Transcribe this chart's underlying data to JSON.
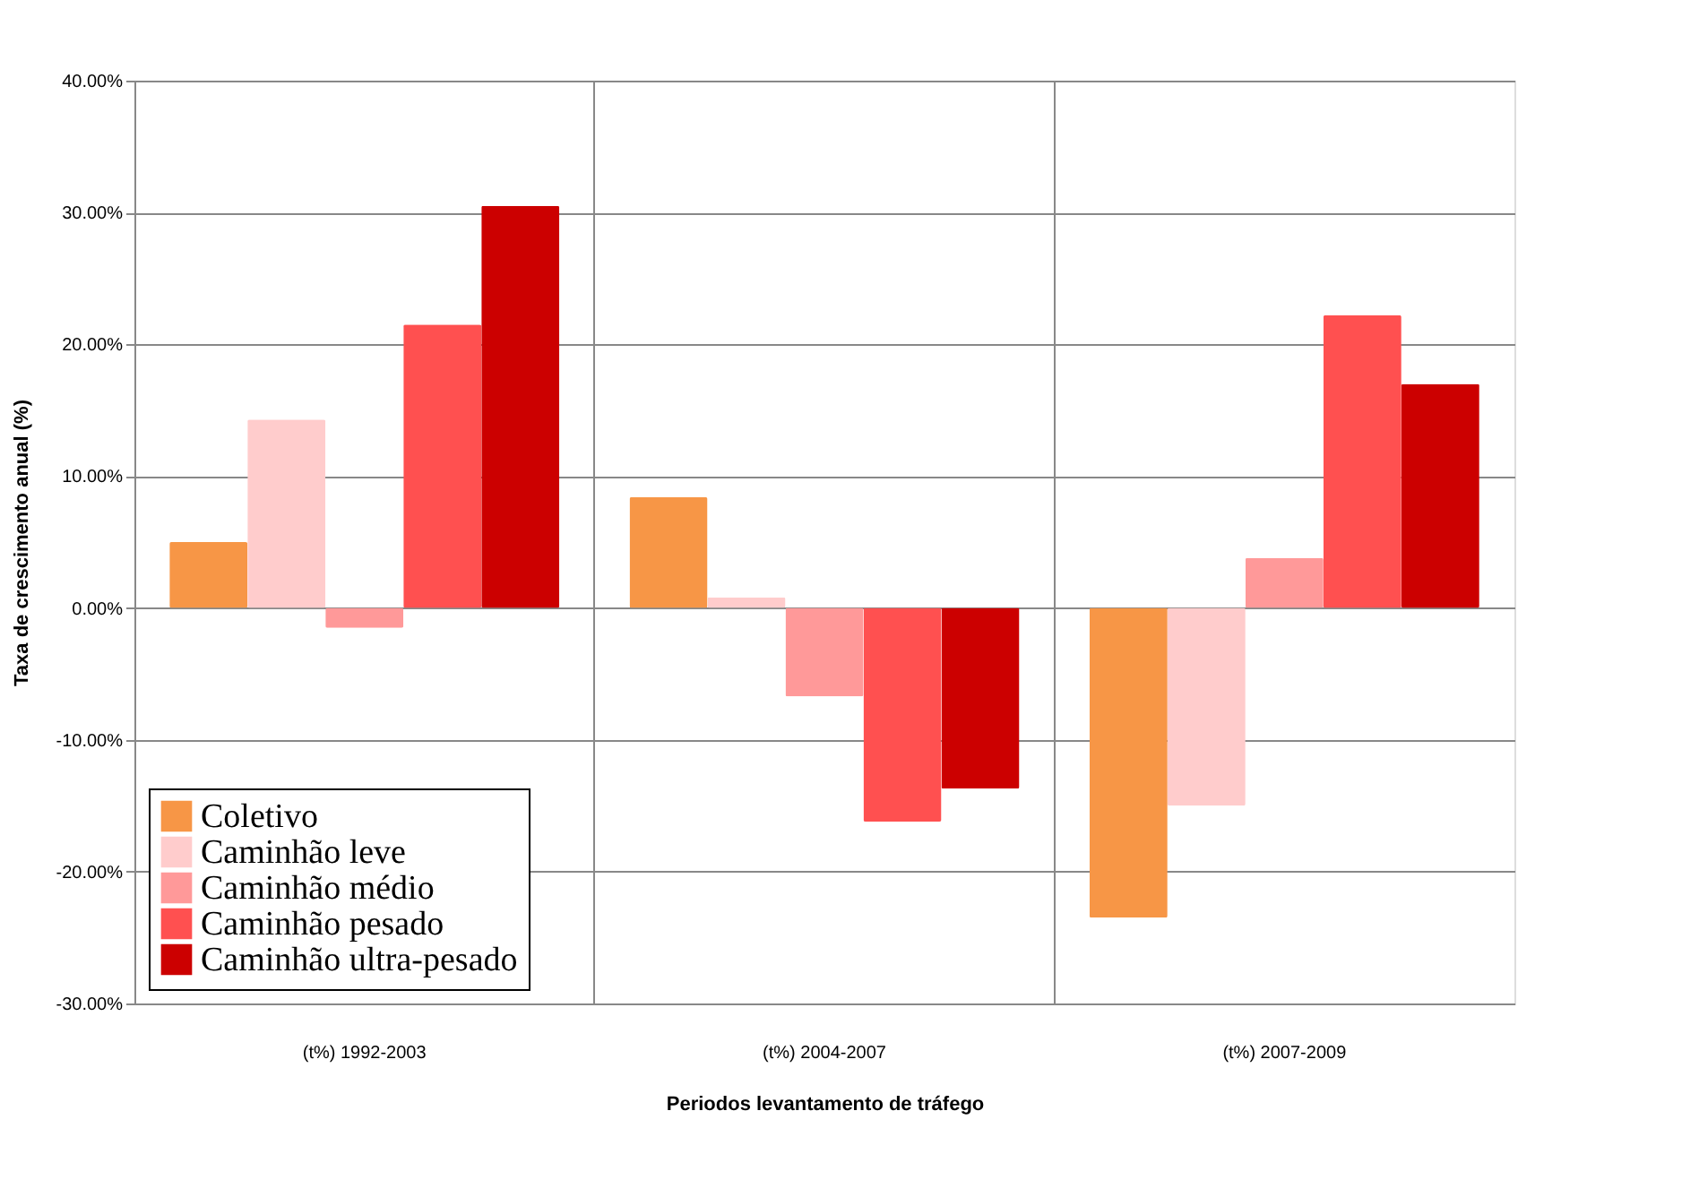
{
  "chart_data": {
    "type": "bar",
    "xlabel": "Periodos levantamento de tráfego",
    "ylabel": "Taxa de crescimento anual  (%)",
    "categories": [
      "(t%) 1992-2003",
      "(t%) 2004-2007",
      "(t%) 2007-2009"
    ],
    "series": [
      {
        "name": "Coletivo",
        "color": "#f79646",
        "values": [
          5.0,
          8.4,
          -23.5
        ]
      },
      {
        "name": "Caminhão leve",
        "color": "#ffcccc",
        "values": [
          14.3,
          0.8,
          -15.0
        ]
      },
      {
        "name": "Caminhão médio",
        "color": "#ff9999",
        "values": [
          -1.5,
          -6.7,
          3.8
        ]
      },
      {
        "name": "Caminhão pesado",
        "color": "#ff5050",
        "values": [
          21.5,
          -16.2,
          22.2
        ]
      },
      {
        "name": "Caminhão ultra-pesado",
        "color": "#cc0000",
        "values": [
          30.5,
          -13.7,
          17.0
        ]
      }
    ],
    "ylim": [
      -30,
      40
    ],
    "yticks": [
      {
        "value": -30,
        "label": "-30.00%"
      },
      {
        "value": -20,
        "label": "-20.00%"
      },
      {
        "value": -10,
        "label": "-10.00%"
      },
      {
        "value": 0,
        "label": "0.00%"
      },
      {
        "value": 10,
        "label": "10.00%"
      },
      {
        "value": 20,
        "label": "20.00%"
      },
      {
        "value": 30,
        "label": "30.00%"
      },
      {
        "value": 40,
        "label": "40.00%"
      }
    ],
    "grid": true,
    "legend": "bottom left"
  }
}
